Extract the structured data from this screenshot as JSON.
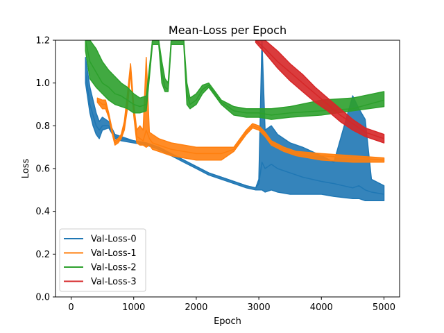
{
  "chart_data": {
    "type": "line",
    "title": "Mean-Loss per Epoch",
    "xlabel": "Epoch",
    "ylabel": "Loss",
    "xlim": [
      -250,
      5250
    ],
    "ylim": [
      0.0,
      1.2
    ],
    "xticks": [
      0,
      1000,
      2000,
      3000,
      4000,
      5000
    ],
    "yticks": [
      0.0,
      0.2,
      0.4,
      0.6,
      0.8,
      1.0,
      1.2
    ],
    "xtick_labels": [
      "0",
      "1000",
      "2000",
      "3000",
      "4000",
      "5000"
    ],
    "ytick_labels": [
      "0.0",
      "0.2",
      "0.4",
      "0.6",
      "0.8",
      "1.0",
      "1.2"
    ],
    "grid": false,
    "legend_position": "lower-left",
    "series": [
      {
        "name": "Val-Loss-0",
        "color": "#1f77b4",
        "x": [
          230,
          300,
          350,
          400,
          450,
          500,
          600,
          700,
          800,
          1000,
          1200,
          1400,
          1600,
          1800,
          2000,
          2200,
          2400,
          2600,
          2800,
          2950,
          3000,
          3050,
          3100,
          3200,
          3300,
          3500,
          3700,
          4000,
          4200,
          4500,
          4600,
          4700,
          4800,
          5000
        ],
        "y": [
          1.05,
          0.9,
          0.85,
          0.8,
          0.78,
          0.8,
          0.8,
          0.75,
          0.74,
          0.73,
          0.72,
          0.7,
          0.67,
          0.64,
          0.61,
          0.58,
          0.56,
          0.54,
          0.52,
          0.51,
          0.53,
          0.63,
          0.6,
          0.62,
          0.6,
          0.58,
          0.56,
          0.54,
          0.53,
          0.51,
          0.52,
          0.5,
          0.49,
          0.48
        ],
        "band_top": [
          1.12,
          0.98,
          0.92,
          0.86,
          0.82,
          0.84,
          0.82,
          0.76,
          0.75,
          0.73,
          0.72,
          0.7,
          0.67,
          0.64,
          0.61,
          0.58,
          0.56,
          0.54,
          0.52,
          0.51,
          0.55,
          1.2,
          0.78,
          0.8,
          0.76,
          0.72,
          0.7,
          0.66,
          0.63,
          0.94,
          0.88,
          0.83,
          0.55,
          0.52
        ],
        "band_bottom": [
          1.0,
          0.86,
          0.8,
          0.76,
          0.74,
          0.78,
          0.79,
          0.74,
          0.73,
          0.72,
          0.71,
          0.69,
          0.66,
          0.63,
          0.6,
          0.57,
          0.55,
          0.53,
          0.51,
          0.5,
          0.5,
          0.5,
          0.49,
          0.5,
          0.49,
          0.48,
          0.48,
          0.48,
          0.47,
          0.46,
          0.46,
          0.45,
          0.45,
          0.45
        ]
      },
      {
        "name": "Val-Loss-1",
        "color": "#ff7f0e",
        "x": [
          420,
          500,
          550,
          600,
          650,
          700,
          750,
          800,
          850,
          900,
          950,
          1000,
          1050,
          1100,
          1150,
          1200,
          1250,
          1300,
          1400,
          1500,
          1600,
          1800,
          2000,
          2200,
          2400,
          2600,
          2700,
          2800,
          2900,
          3000,
          3100,
          3200,
          3400,
          3600,
          4000,
          4500,
          5000
        ],
        "y": [
          0.92,
          0.9,
          0.9,
          0.85,
          0.78,
          0.72,
          0.73,
          0.75,
          0.8,
          0.92,
          1.08,
          0.88,
          0.75,
          0.74,
          0.73,
          0.78,
          0.74,
          0.72,
          0.71,
          0.7,
          0.69,
          0.68,
          0.67,
          0.67,
          0.67,
          0.69,
          0.73,
          0.77,
          0.8,
          0.79,
          0.76,
          0.72,
          0.69,
          0.67,
          0.66,
          0.65,
          0.64
        ],
        "band_top": [
          0.93,
          0.92,
          0.92,
          0.86,
          0.79,
          0.73,
          0.74,
          0.76,
          0.82,
          0.95,
          1.09,
          0.9,
          0.78,
          0.8,
          0.78,
          1.12,
          0.77,
          0.76,
          0.74,
          0.73,
          0.72,
          0.71,
          0.7,
          0.7,
          0.7,
          0.7,
          0.74,
          0.78,
          0.81,
          0.8,
          0.77,
          0.73,
          0.7,
          0.68,
          0.67,
          0.66,
          0.65
        ],
        "band_bottom": [
          0.91,
          0.88,
          0.88,
          0.84,
          0.77,
          0.71,
          0.72,
          0.74,
          0.78,
          0.88,
          1.05,
          0.85,
          0.72,
          0.71,
          0.71,
          0.7,
          0.71,
          0.69,
          0.68,
          0.67,
          0.66,
          0.65,
          0.64,
          0.64,
          0.64,
          0.68,
          0.72,
          0.76,
          0.79,
          0.78,
          0.75,
          0.71,
          0.68,
          0.66,
          0.64,
          0.63,
          0.63
        ]
      },
      {
        "name": "Val-Loss-2",
        "color": "#2ca02c",
        "x": [
          230,
          300,
          400,
          500,
          600,
          700,
          800,
          900,
          1000,
          1100,
          1200,
          1300,
          1400,
          1450,
          1500,
          1550,
          1600,
          1650,
          1700,
          1750,
          1800,
          1850,
          1900,
          2000,
          2100,
          2200,
          2300,
          2400,
          2600,
          2800,
          3000,
          3200,
          3500,
          4000,
          4500,
          5000
        ],
        "y": [
          1.2,
          1.1,
          1.05,
          1.0,
          0.98,
          0.95,
          0.94,
          0.92,
          0.9,
          0.89,
          0.9,
          1.2,
          1.2,
          1.05,
          0.98,
          0.97,
          1.2,
          1.2,
          1.2,
          1.2,
          1.2,
          0.95,
          0.9,
          0.92,
          0.97,
          0.99,
          0.95,
          0.91,
          0.87,
          0.86,
          0.86,
          0.85,
          0.86,
          0.87,
          0.88,
          0.92
        ],
        "band_top": [
          1.2,
          1.2,
          1.16,
          1.1,
          1.06,
          1.03,
          1.0,
          0.98,
          0.95,
          0.93,
          0.94,
          1.2,
          1.2,
          1.1,
          1.02,
          1.0,
          1.2,
          1.2,
          1.2,
          1.2,
          1.2,
          1.0,
          0.93,
          0.95,
          0.99,
          1.0,
          0.96,
          0.92,
          0.89,
          0.88,
          0.88,
          0.88,
          0.89,
          0.92,
          0.93,
          0.96
        ],
        "band_bottom": [
          1.15,
          1.02,
          0.98,
          0.95,
          0.92,
          0.9,
          0.89,
          0.88,
          0.86,
          0.86,
          0.87,
          1.18,
          1.18,
          1.0,
          0.96,
          0.96,
          1.18,
          1.18,
          1.18,
          1.18,
          1.18,
          0.9,
          0.88,
          0.9,
          0.95,
          0.98,
          0.94,
          0.9,
          0.85,
          0.84,
          0.84,
          0.83,
          0.84,
          0.85,
          0.87,
          0.89
        ]
      },
      {
        "name": "Val-Loss-3",
        "color": "#d62728",
        "x": [
          2950,
          3100,
          3300,
          3500,
          3700,
          3900,
          4100,
          4300,
          4500,
          4700,
          4900,
          5000
        ],
        "y": [
          1.2,
          1.16,
          1.1,
          1.05,
          1.0,
          0.95,
          0.9,
          0.85,
          0.81,
          0.77,
          0.75,
          0.74
        ],
        "band_top": [
          1.2,
          1.2,
          1.15,
          1.09,
          1.04,
          0.98,
          0.93,
          0.88,
          0.83,
          0.79,
          0.77,
          0.76
        ],
        "band_bottom": [
          1.19,
          1.14,
          1.07,
          1.01,
          0.96,
          0.91,
          0.87,
          0.82,
          0.78,
          0.75,
          0.73,
          0.72
        ]
      }
    ]
  }
}
